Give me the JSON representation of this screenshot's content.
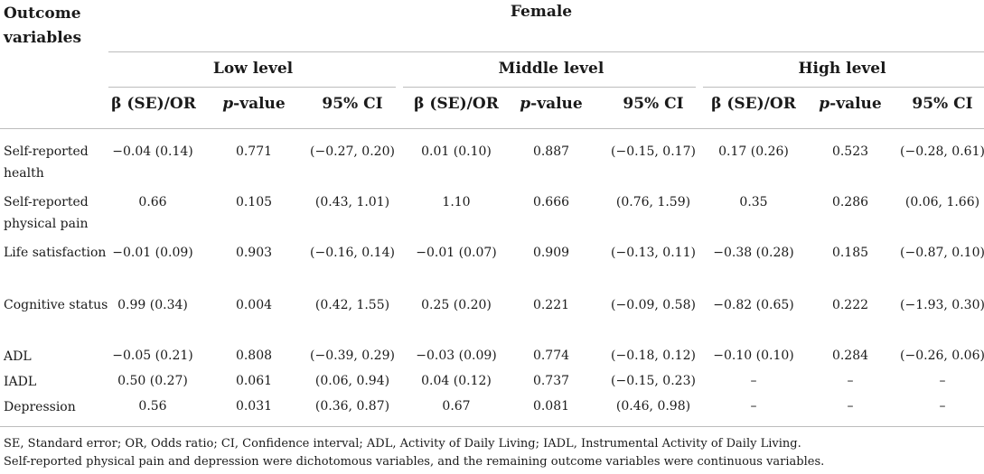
{
  "header": {
    "outcome_label": "Outcome variables",
    "group": "Female",
    "levels": [
      "Low level",
      "Middle level",
      "High level"
    ],
    "col_beta": "β (SE)/OR",
    "col_p_italic": "p",
    "col_p_suffix": "-value",
    "col_ci": "95% CI"
  },
  "rows": [
    {
      "label": "Self-reported health",
      "cells": [
        "−0.04 (0.14)",
        "0.771",
        "(−0.27, 0.20)",
        "0.01 (0.10)",
        "0.887",
        "(−0.15, 0.17)",
        "0.17 (0.26)",
        "0.523",
        "(−0.28, 0.61)"
      ]
    },
    {
      "label": "Self-reported physical pain",
      "cells": [
        "0.66",
        "0.105",
        "(0.43, 1.01)",
        "1.10",
        "0.666",
        "(0.76, 1.59)",
        "0.35",
        "0.286",
        "(0.06, 1.66)"
      ]
    },
    {
      "label": "Life satisfaction",
      "cells": [
        "−0.01 (0.09)",
        "0.903",
        "(−0.16, 0.14)",
        "−0.01 (0.07)",
        "0.909",
        "(−0.13, 0.11)",
        "−0.38 (0.28)",
        "0.185",
        "(−0.87, 0.10)"
      ]
    },
    {
      "label": "Cognitive status",
      "cells": [
        "0.99 (0.34)",
        "0.004",
        "(0.42, 1.55)",
        "0.25 (0.20)",
        "0.221",
        "(−0.09, 0.58)",
        "−0.82 (0.65)",
        "0.222",
        "(−1.93, 0.30)"
      ]
    },
    {
      "label": "ADL",
      "cells": [
        "−0.05 (0.21)",
        "0.808",
        "(−0.39, 0.29)",
        "−0.03 (0.09)",
        "0.774",
        "(−0.18, 0.12)",
        "−0.10 (0.10)",
        "0.284",
        "(−0.26, 0.06)"
      ]
    },
    {
      "label": "IADL",
      "cells": [
        "0.50 (0.27)",
        "0.061",
        "(0.06, 0.94)",
        "0.04 (0.12)",
        "0.737",
        "(−0.15, 0.23)",
        "–",
        "–",
        "–"
      ]
    },
    {
      "label": "Depression",
      "cells": [
        "0.56",
        "0.031",
        "(0.36, 0.87)",
        "0.67",
        "0.081",
        "(0.46, 0.98)",
        "–",
        "–",
        "–"
      ]
    }
  ],
  "footnotes": [
    "SE, Standard error; OR, Odds ratio; CI, Confidence interval; ADL, Activity of Daily Living; IADL, Instrumental Activity of Daily Living.",
    "Self-reported physical pain and depression were dichotomous variables, and the remaining outcome variables were continuous variables."
  ]
}
